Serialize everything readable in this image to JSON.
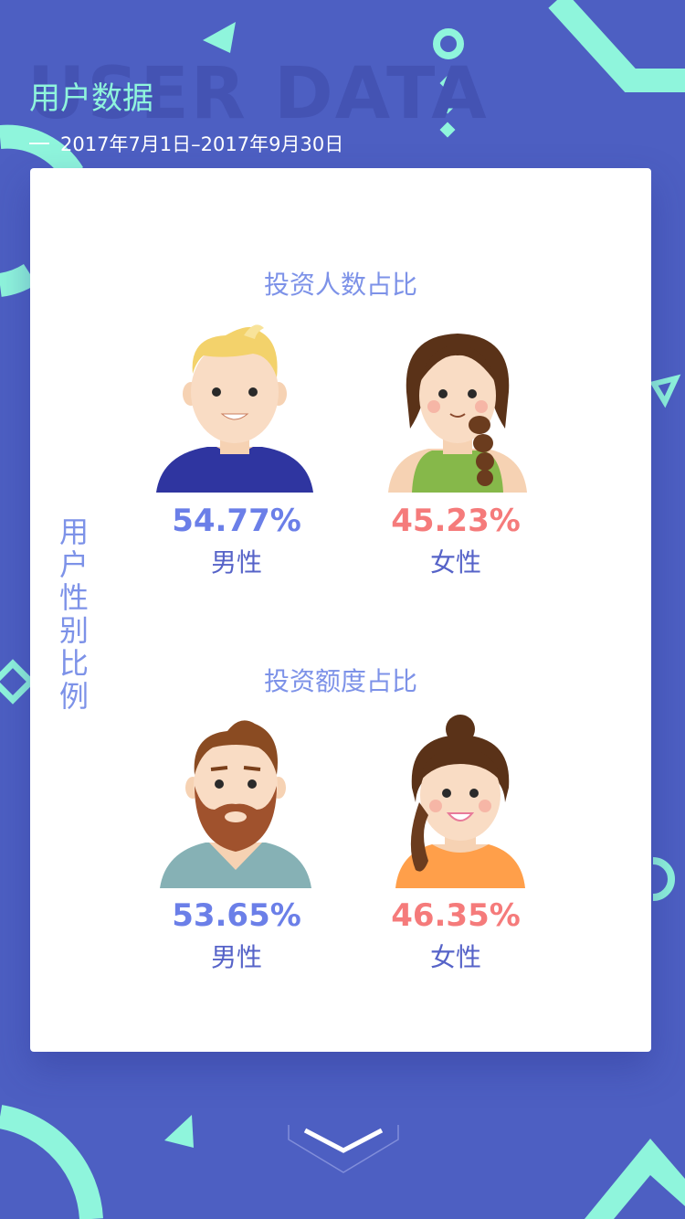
{
  "header": {
    "bg_title": "USER DATA",
    "title": "用户数据",
    "date_range": "2017年7月1日–2017年9月30日"
  },
  "card": {
    "side_label": "用户性别比例",
    "sections": [
      {
        "title": "投资人数占比",
        "male": {
          "pct": "54.77%",
          "label": "男性"
        },
        "female": {
          "pct": "45.23%",
          "label": "女性"
        }
      },
      {
        "title": "投资额度占比",
        "male": {
          "pct": "53.65%",
          "label": "男性"
        },
        "female": {
          "pct": "46.35%",
          "label": "女性"
        }
      }
    ]
  },
  "colors": {
    "background": "#4d5fc2",
    "accent_mint": "#8ff5dc",
    "male_pct": "#6b7fe8",
    "female_pct": "#f57b7b",
    "label": "#5663c8"
  },
  "icons": [
    "chevron-down-icon"
  ]
}
